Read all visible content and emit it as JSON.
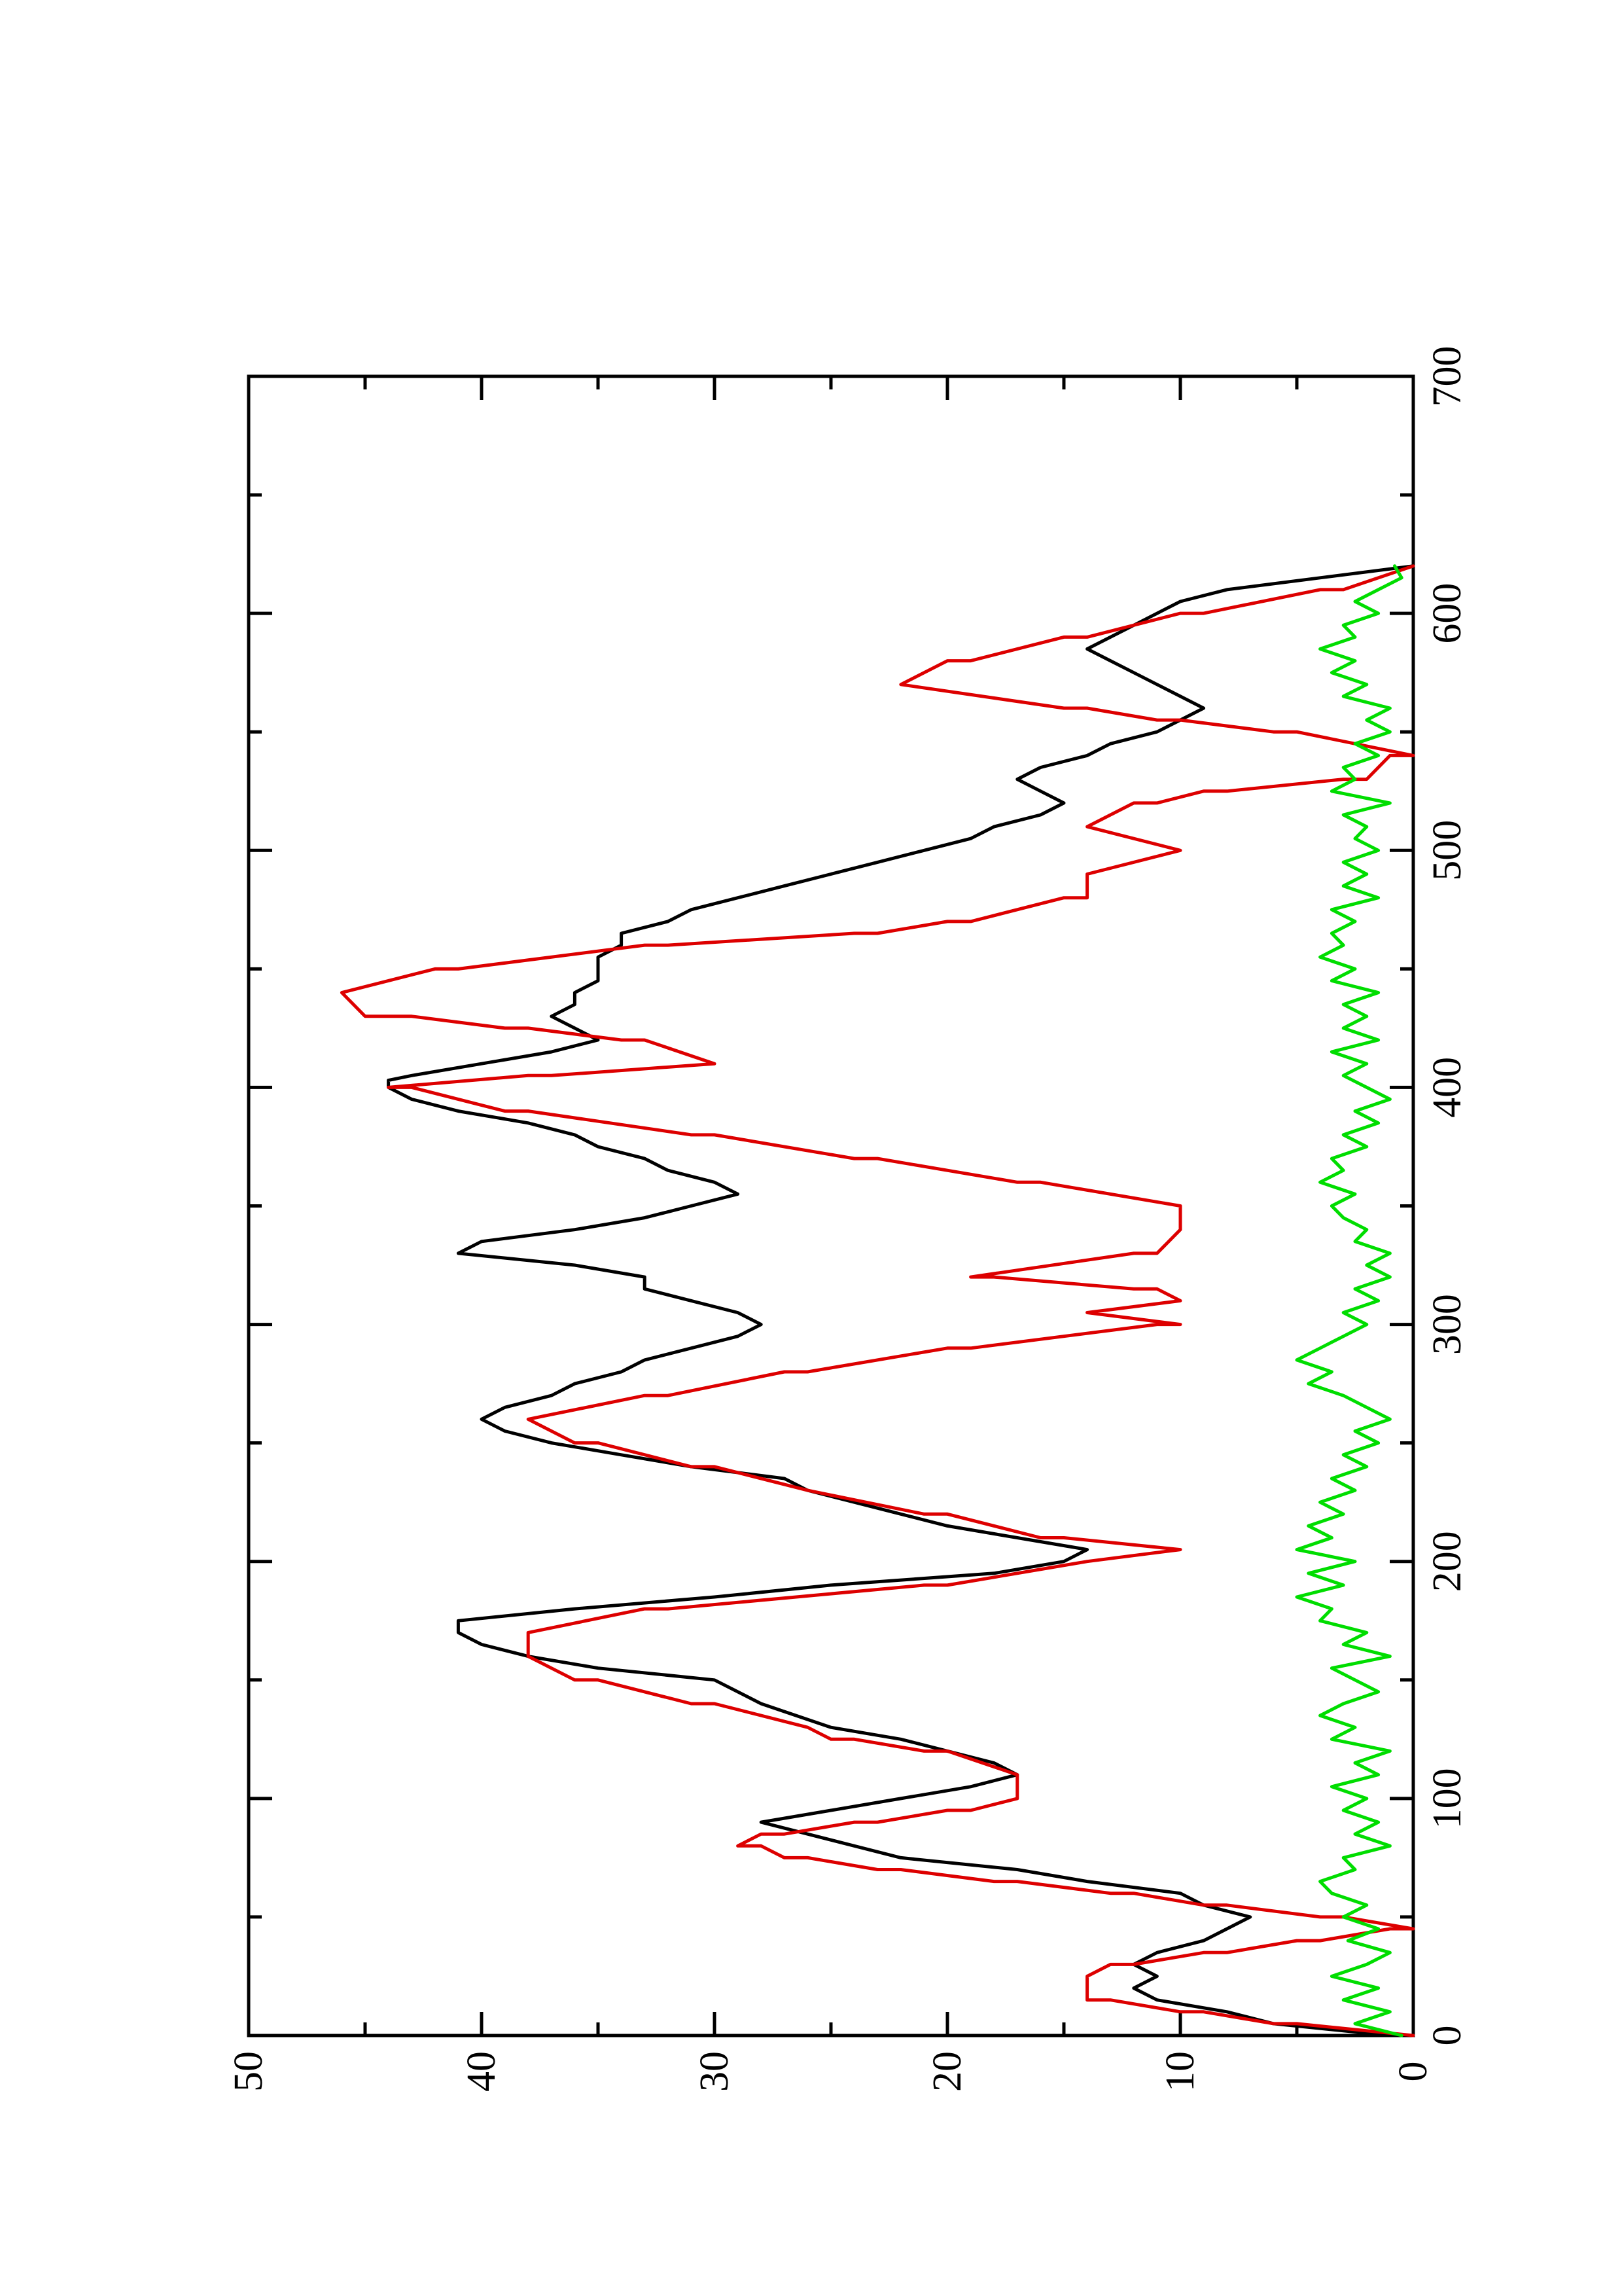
{
  "chart_data": {
    "type": "line",
    "title": "",
    "xlabel": "",
    "ylabel": "",
    "xlim": [
      0,
      700
    ],
    "ylim": [
      0,
      50
    ],
    "x_ticks": [
      0,
      100,
      200,
      300,
      400,
      500,
      600,
      700
    ],
    "x_minor_ticks": [
      50,
      150,
      250,
      350,
      450,
      550,
      650
    ],
    "y_ticks": [
      0,
      10,
      20,
      30,
      40,
      50
    ],
    "y_minor_ticks": [
      5,
      15,
      25,
      35,
      45
    ],
    "grid": false,
    "legend": "none",
    "orientation": "rotated 90° counter-clockwise on page",
    "series": [
      {
        "color": "#000000",
        "x": [
          0,
          5,
          10,
          15,
          20,
          25,
          30,
          35,
          40,
          45,
          50,
          55,
          60,
          65,
          70,
          75,
          80,
          85,
          90,
          95,
          100,
          105,
          110,
          115,
          120,
          125,
          130,
          140,
          150,
          155,
          160,
          165,
          170,
          175,
          180,
          185,
          190,
          195,
          200,
          205,
          210,
          215,
          220,
          225,
          230,
          235,
          240,
          245,
          250,
          255,
          260,
          265,
          270,
          275,
          280,
          285,
          290,
          295,
          300,
          305,
          310,
          315,
          320,
          325,
          330,
          335,
          340,
          345,
          350,
          355,
          360,
          365,
          370,
          375,
          380,
          385,
          390,
          395,
          400,
          403,
          405,
          410,
          415,
          420,
          425,
          430,
          435,
          440,
          445,
          450,
          455,
          460,
          465,
          470,
          475,
          480,
          485,
          490,
          495,
          500,
          505,
          510,
          515,
          520,
          525,
          530,
          535,
          540,
          545,
          550,
          555,
          560,
          565,
          570,
          575,
          580,
          585,
          590,
          595,
          600,
          605,
          610,
          615,
          620
        ],
        "y": [
          1,
          6,
          8,
          11,
          12,
          11,
          12,
          11,
          9,
          8,
          7,
          9,
          10,
          14,
          17,
          22,
          24,
          26,
          28,
          25,
          22,
          19,
          17,
          18,
          20,
          22,
          25,
          28,
          30,
          35,
          38,
          40,
          41,
          41,
          36,
          30,
          25,
          18,
          15,
          14,
          17,
          20,
          22,
          24,
          26,
          27,
          31,
          34,
          37,
          39,
          40,
          39,
          37,
          36,
          34,
          33,
          31,
          29,
          28,
          29,
          31,
          33,
          33,
          36,
          41,
          40,
          36,
          33,
          31,
          29,
          30,
          32,
          33,
          35,
          36,
          38,
          41,
          43,
          44,
          44,
          43,
          40,
          37,
          35,
          36,
          37,
          36,
          36,
          35,
          35,
          35,
          34,
          34,
          32,
          31,
          29,
          27,
          25,
          23,
          21,
          19,
          18,
          16,
          15,
          16,
          17,
          16,
          14,
          13,
          11,
          10,
          9,
          10,
          11,
          12,
          13,
          14,
          13,
          12,
          11,
          10,
          8,
          4,
          0
        ]
      },
      {
        "color": "#dd0000",
        "x": [
          0,
          5,
          5,
          10,
          10,
          15,
          15,
          20,
          20,
          25,
          25,
          30,
          30,
          35,
          35,
          40,
          40,
          45,
          45,
          50,
          50,
          55,
          55,
          60,
          60,
          65,
          65,
          70,
          70,
          75,
          75,
          80,
          80,
          85,
          85,
          90,
          90,
          95,
          95,
          100,
          100,
          105,
          105,
          110,
          110,
          120,
          120,
          125,
          125,
          130,
          130,
          140,
          140,
          150,
          150,
          160,
          160,
          170,
          170,
          180,
          180,
          190,
          190,
          200,
          200,
          205,
          205,
          210,
          210,
          220,
          220,
          230,
          230,
          240,
          240,
          250,
          250,
          260,
          260,
          270,
          270,
          280,
          280,
          290,
          290,
          300,
          300,
          305,
          305,
          310,
          310,
          315,
          315,
          320,
          320,
          330,
          330,
          340,
          340,
          350,
          350,
          360,
          360,
          370,
          370,
          380,
          380,
          390,
          390,
          400,
          400,
          405,
          405,
          410,
          410,
          420,
          420,
          425,
          425,
          430,
          430,
          440,
          440,
          450,
          450,
          460,
          460,
          465,
          465,
          470,
          470,
          480,
          480,
          490,
          490,
          500,
          500,
          510,
          510,
          520,
          520,
          525,
          525,
          530,
          530,
          540,
          540,
          550,
          550,
          555,
          555,
          560,
          560,
          570,
          570,
          580,
          580,
          590,
          590,
          600,
          600,
          610,
          610,
          620
        ],
        "y": [
          0,
          5,
          6,
          9,
          10,
          13,
          14,
          14,
          14,
          14,
          14,
          13,
          12,
          9,
          8,
          5,
          4,
          1,
          0,
          3,
          4,
          8,
          9,
          12,
          13,
          17,
          18,
          22,
          23,
          26,
          27,
          28,
          29,
          28,
          27,
          24,
          23,
          20,
          19,
          17,
          17,
          17,
          17,
          17,
          17,
          20,
          21,
          24,
          25,
          26,
          26,
          30,
          31,
          35,
          36,
          38,
          38,
          38,
          38,
          33,
          32,
          21,
          20,
          14,
          14,
          10,
          10,
          15,
          16,
          20,
          21,
          26,
          26,
          30,
          31,
          35,
          36,
          38,
          38,
          33,
          32,
          27,
          26,
          20,
          19,
          11,
          10,
          14,
          14,
          10,
          10,
          11,
          12,
          18,
          19,
          12,
          11,
          10,
          10,
          10,
          10,
          16,
          17,
          23,
          24,
          30,
          31,
          38,
          39,
          43,
          44,
          38,
          37,
          30,
          30,
          33,
          34,
          38,
          39,
          43,
          45,
          46,
          46,
          42,
          41,
          33,
          32,
          24,
          23,
          20,
          19,
          15,
          14,
          14,
          14,
          10,
          10,
          14,
          14,
          12,
          11,
          9,
          8,
          3,
          2,
          1,
          0,
          5,
          6,
          10,
          11,
          14,
          15,
          22,
          22,
          20,
          19,
          15,
          14,
          10,
          9,
          4,
          3,
          0
        ]
      },
      {
        "color": "#00dd00",
        "x": [
          0,
          5,
          10,
          15,
          20,
          25,
          30,
          35,
          40,
          45,
          50,
          55,
          60,
          65,
          70,
          75,
          80,
          85,
          90,
          95,
          100,
          105,
          110,
          115,
          120,
          125,
          130,
          135,
          140,
          145,
          150,
          155,
          160,
          165,
          170,
          175,
          180,
          185,
          190,
          195,
          200,
          205,
          210,
          215,
          220,
          225,
          230,
          235,
          240,
          245,
          250,
          255,
          260,
          265,
          270,
          275,
          280,
          285,
          290,
          295,
          300,
          305,
          310,
          315,
          320,
          325,
          330,
          335,
          340,
          345,
          350,
          355,
          360,
          365,
          370,
          375,
          380,
          385,
          390,
          395,
          400,
          405,
          410,
          415,
          420,
          425,
          430,
          435,
          440,
          445,
          450,
          455,
          460,
          465,
          470,
          475,
          480,
          485,
          490,
          495,
          500,
          505,
          510,
          515,
          520,
          525,
          530,
          535,
          540,
          545,
          550,
          555,
          560,
          565,
          570,
          575,
          580,
          585,
          590,
          595,
          600,
          605,
          610,
          615,
          620
        ],
        "y": [
          0.5,
          2.5,
          1.0,
          3.0,
          1.5,
          3.5,
          2.0,
          1.0,
          2.8,
          1.5,
          3.0,
          2.0,
          3.5,
          4.0,
          2.5,
          3.0,
          1.0,
          2.5,
          1.5,
          3.0,
          2.0,
          3.5,
          1.5,
          2.5,
          1.0,
          3.5,
          2.5,
          4.0,
          3.0,
          1.5,
          2.5,
          3.5,
          1.0,
          3.0,
          2.0,
          4.0,
          3.5,
          5.0,
          3.0,
          4.5,
          2.5,
          5.0,
          3.5,
          4.5,
          3.0,
          4.0,
          2.5,
          3.5,
          2.0,
          3.0,
          1.5,
          2.5,
          1.0,
          2.0,
          3.0,
          4.5,
          3.5,
          5.0,
          4.0,
          3.0,
          2.0,
          3.0,
          1.5,
          2.5,
          1.0,
          2.0,
          1.0,
          2.5,
          2.0,
          3.0,
          3.5,
          2.5,
          4.0,
          3.0,
          3.5,
          2.0,
          3.0,
          1.5,
          2.5,
          1.0,
          2.0,
          3.0,
          2.0,
          3.5,
          1.5,
          3.0,
          2.0,
          3.0,
          1.5,
          3.5,
          2.5,
          4.0,
          3.0,
          3.5,
          2.5,
          3.5,
          1.5,
          3.0,
          2.0,
          3.0,
          1.5,
          2.5,
          2.0,
          3.0,
          1.0,
          3.5,
          2.5,
          3.0,
          1.5,
          2.5,
          1.0,
          2.0,
          1.0,
          3.0,
          2.0,
          3.5,
          2.5,
          4.0,
          2.5,
          3.0,
          1.5,
          2.5,
          1.5,
          0.5,
          0.8
        ]
      }
    ]
  }
}
